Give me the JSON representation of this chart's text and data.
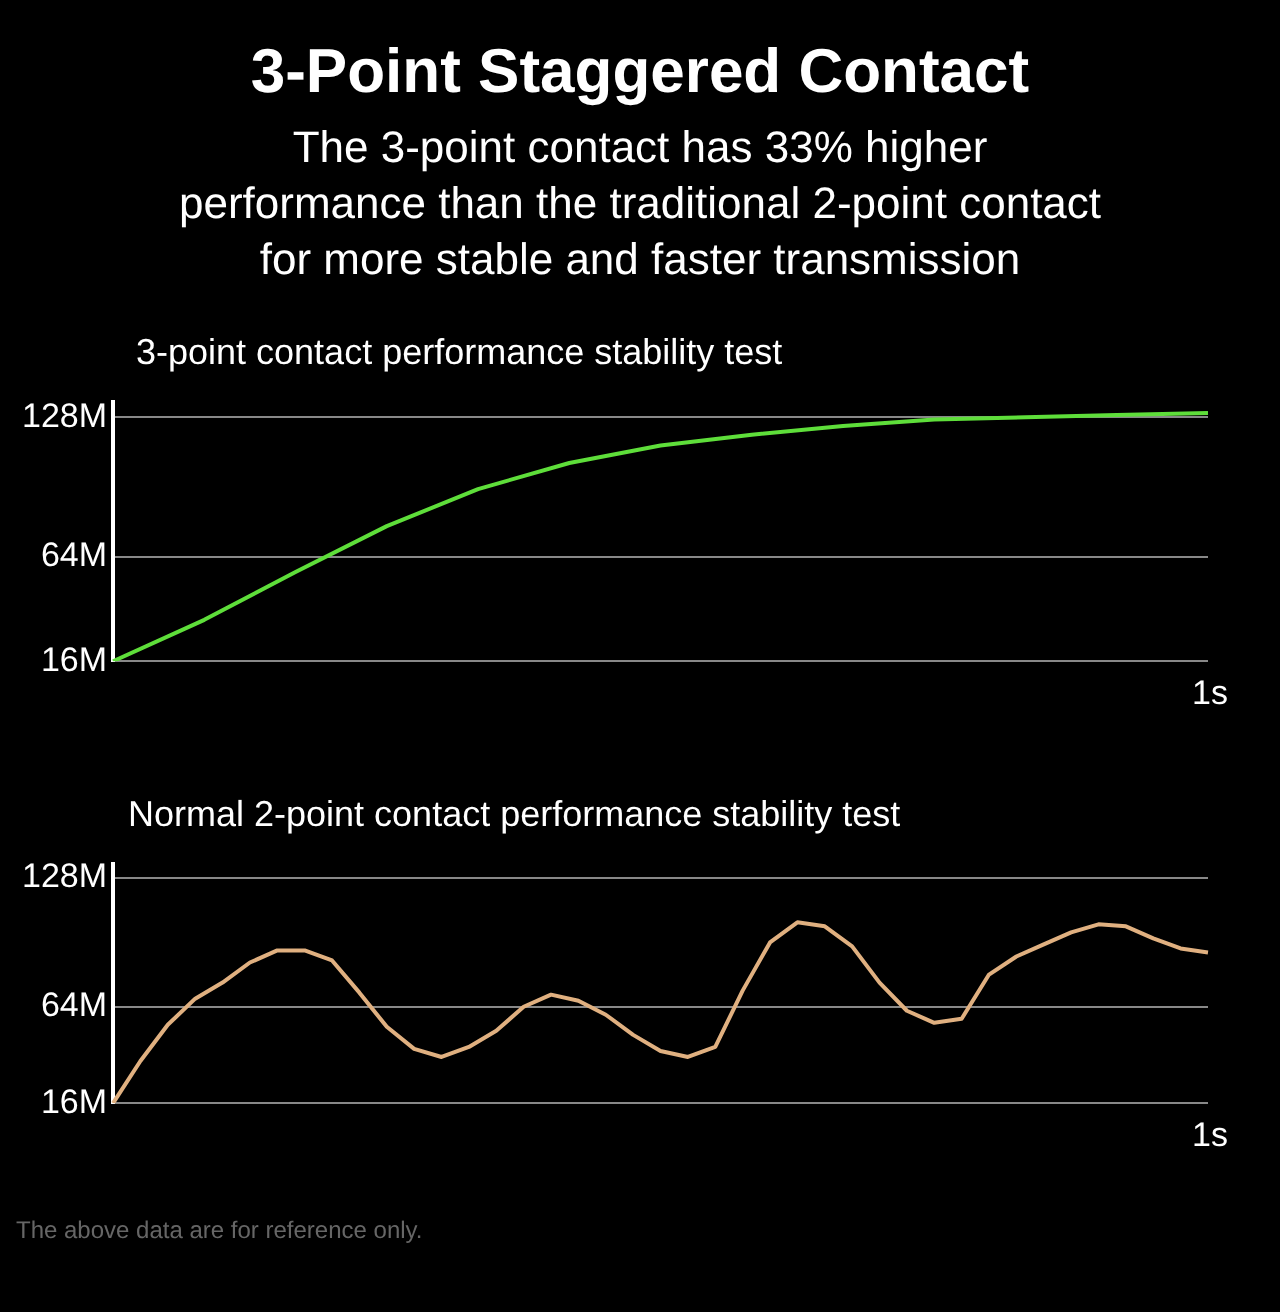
{
  "chart_data": [
    {
      "type": "line",
      "title": "3-Point Staggered Contact",
      "subtitle": "The 3-point contact has 33% higher performance than the traditional 2-point contact for more stable and faster transmission",
      "annotations": [
        "3-point contact performance stability test",
        "1s"
      ],
      "categories": [
        null,
        null,
        null,
        null,
        null,
        null,
        null,
        null,
        null,
        null,
        null,
        null,
        null
      ],
      "series": [
        {
          "color": "#5ede3a",
          "values": [
            16,
            35,
            57,
            78,
            95,
            107,
            115,
            120,
            124,
            127,
            128,
            129,
            130
          ]
        }
      ],
      "ylim": [
        16,
        135
      ],
      "yticks": [
        {
          "value": 16,
          "label": "16M"
        },
        {
          "value": 64,
          "label": "64M"
        },
        {
          "value": 128,
          "label": "128M"
        }
      ],
      "grid": "y",
      "legend": false,
      "marker": "none",
      "line_style": "solid"
    },
    {
      "type": "line",
      "title": "Normal 2-point contact performance stability test",
      "annotations": [
        "1s",
        "The above data are for reference only."
      ],
      "categories": [
        null,
        null,
        null,
        null,
        null,
        null,
        null,
        null,
        null,
        null,
        null,
        null,
        null,
        null,
        null,
        null,
        null,
        null,
        null,
        null,
        null,
        null,
        null,
        null,
        null,
        null,
        null,
        null,
        null,
        null,
        null,
        null,
        null,
        null,
        null,
        null,
        null,
        null,
        null,
        null,
        null
      ],
      "series": [
        {
          "color": "#e0b080",
          "values": [
            16,
            37,
            55,
            68,
            76,
            86,
            92,
            92,
            87,
            71,
            54,
            43,
            39,
            44,
            52,
            64,
            70,
            67,
            60,
            50,
            42,
            39,
            44,
            72,
            96,
            106,
            104,
            94,
            76,
            62,
            56,
            58,
            80,
            89,
            95,
            101,
            105,
            104,
            98,
            93,
            91
          ]
        }
      ],
      "ylim": [
        16,
        135
      ],
      "yticks": [
        {
          "value": 16,
          "label": "16M"
        },
        {
          "value": 64,
          "label": "64M"
        },
        {
          "value": 128,
          "label": "128M"
        }
      ],
      "grid": "y",
      "legend": false,
      "marker": "none",
      "line_style": "solid"
    }
  ]
}
